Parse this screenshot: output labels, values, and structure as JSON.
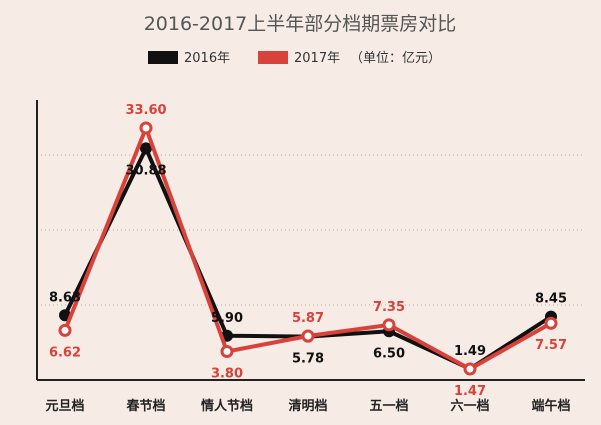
{
  "chart_data": {
    "type": "line",
    "title": "2016-2017上半年部分档期票房对比",
    "unit_note": "（单位：亿元）",
    "categories": [
      "元旦档",
      "春节档",
      "情人节档",
      "清明档",
      "五一档",
      "六一档",
      "端午档"
    ],
    "series": [
      {
        "name": "2016年",
        "color": "#111111",
        "values": [
          8.63,
          30.88,
          5.9,
          5.78,
          6.5,
          1.49,
          8.45
        ],
        "labels": [
          "8.63",
          "30.88",
          "5.90",
          "5.78",
          "6.50",
          "1.49",
          "8.45"
        ]
      },
      {
        "name": "2017年",
        "color": "#d9423b",
        "values": [
          6.62,
          33.6,
          3.8,
          5.87,
          7.35,
          1.47,
          7.57
        ],
        "labels": [
          "6.62",
          "33.60",
          "3.80",
          "5.87",
          "7.35",
          "1.47",
          "7.57"
        ]
      }
    ],
    "ylim": [
      0,
      38
    ],
    "grid": "dotted-horizontal"
  }
}
